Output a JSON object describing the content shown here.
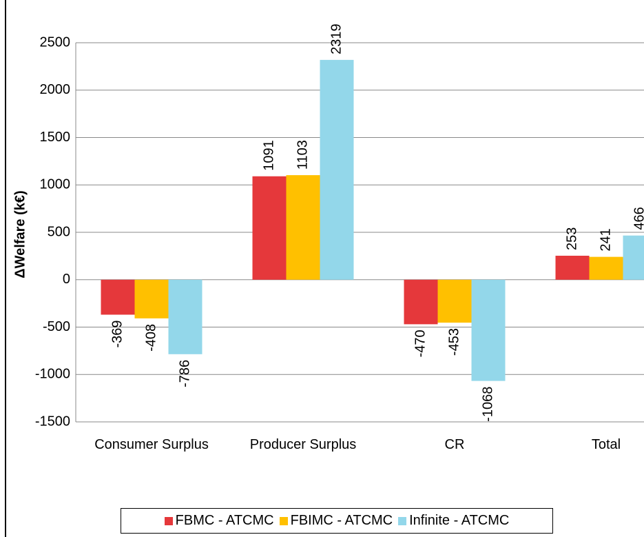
{
  "chart_data": {
    "type": "bar",
    "y_axis_label": "ΔWelfare (k€)",
    "categories": [
      "Consumer Surplus",
      "Producer Surplus",
      "CR",
      "Total"
    ],
    "series": [
      {
        "name": "FBMC - ATCMC",
        "color": "#e5383b",
        "values": [
          -369,
          1091,
          -470,
          253
        ]
      },
      {
        "name": "FBIMC - ATCMC",
        "color": "#ffc000",
        "values": [
          -408,
          1103,
          -453,
          241
        ]
      },
      {
        "name": "Infinite - ATCMC",
        "color": "#93d7ea",
        "values": [
          -786,
          2319,
          -1068,
          466
        ]
      }
    ],
    "ylim": [
      -1500,
      2500
    ],
    "yticks": [
      -1500,
      -1000,
      -500,
      0,
      500,
      1000,
      1500,
      2000,
      2500
    ],
    "grid": true,
    "legend": "bottom"
  }
}
